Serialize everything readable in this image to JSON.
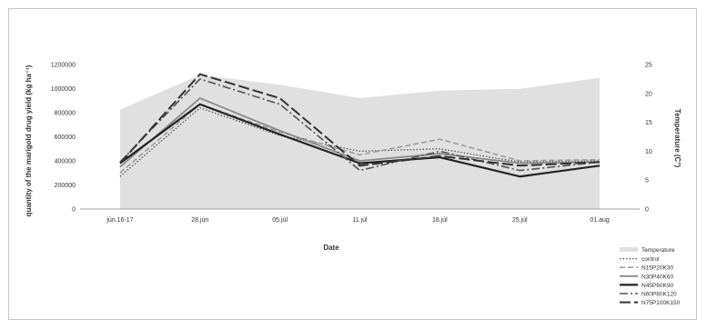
{
  "chart_data": {
    "type": "line",
    "title": "",
    "xlabel": "Date",
    "ylabel": "quantity of the marigold drug yield (kg ha⁻¹)",
    "y2label": "Temperature (C°)",
    "categories": [
      "jún.16-17",
      "28.jún",
      "05.júl",
      "11.júl",
      "18.júl",
      "25.júl",
      "01.aug"
    ],
    "ylim": [
      0,
      1200000
    ],
    "y2lim": [
      0,
      25
    ],
    "yticks": [
      "0",
      "200000",
      "400000",
      "600000",
      "800000",
      "1000000",
      "1200000"
    ],
    "y2ticks": [
      "0",
      "5",
      "10",
      "15",
      "20",
      "25"
    ],
    "grid": false,
    "legend": "bottom-right",
    "temperature": {
      "name": "Temperature",
      "values": [
        17.2,
        23.2,
        21.5,
        19.2,
        20.5,
        20.8,
        22.7
      ],
      "color": "#e0e0e0"
    },
    "series": [
      {
        "name": "control",
        "values": [
          270000,
          840000,
          610000,
          480000,
          500000,
          390000,
          400000
        ],
        "color": "#555555",
        "dash": "1.5,2",
        "width": 1.3
      },
      {
        "name": "N15P20K30",
        "values": [
          300000,
          870000,
          640000,
          450000,
          580000,
          400000,
          410000
        ],
        "color": "#9a9a9a",
        "dash": "6,3",
        "width": 1.5
      },
      {
        "name": "N30P40K60",
        "values": [
          350000,
          920000,
          650000,
          400000,
          460000,
          380000,
          390000
        ],
        "color": "#8a8a8a",
        "dash": "",
        "width": 1.8
      },
      {
        "name": "N45P60K90",
        "values": [
          380000,
          870000,
          620000,
          380000,
          430000,
          270000,
          360000
        ],
        "color": "#222222",
        "dash": "",
        "width": 2.2
      },
      {
        "name": "N60P80K120",
        "values": [
          390000,
          1080000,
          870000,
          320000,
          480000,
          320000,
          390000
        ],
        "color": "#555555",
        "dash": "9,3,2,3",
        "width": 1.6
      },
      {
        "name": "N75P100K150",
        "values": [
          380000,
          1120000,
          920000,
          360000,
          440000,
          360000,
          390000
        ],
        "color": "#333333",
        "dash": "12,4",
        "width": 2
      }
    ]
  }
}
